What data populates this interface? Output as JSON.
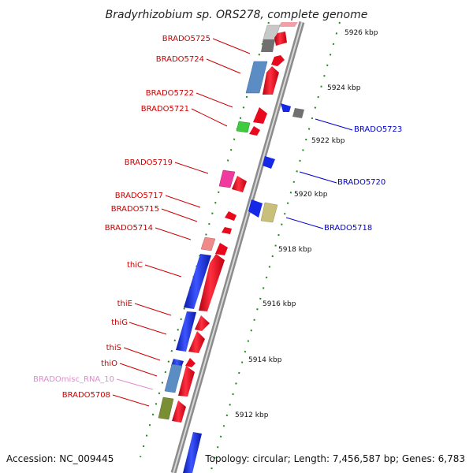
{
  "title": "Bradyrhizobium sp. ORS278, complete genome",
  "footer": {
    "accession": "Accession: NC_009445",
    "summary": "Topology: circular; Length: 7,456,587 bp; Genes: 6,783"
  },
  "colors": {
    "forward_label": "#cc0000",
    "reverse_label": "#0000cc",
    "rna_label": "#e38ad0",
    "ruler_tick": "#1a8a1a",
    "backbone": "#8c8c8c",
    "forward_arrow": "#e8091d",
    "reverse_arrow": "#1428e6"
  },
  "ruler_labels": [
    "5926 kbp",
    "5924 kbp",
    "5922 kbp",
    "5920 kbp",
    "5918 kbp",
    "5916 kbp",
    "5914 kbp",
    "5912 kbp"
  ],
  "labels_left": [
    "BRADO5725",
    "BRADO5724",
    "BRADO5722",
    "BRADO5721",
    "BRADO5719",
    "BRADO5717",
    "BRADO5715",
    "BRADO5714",
    "thiC",
    "thiE",
    "thiG",
    "thiS",
    "thiO",
    "BRADOmisc_RNA_10",
    "BRADO5708"
  ],
  "labels_right": [
    "BRADO5723",
    "BRADO5720",
    "BRADO5718"
  ]
}
